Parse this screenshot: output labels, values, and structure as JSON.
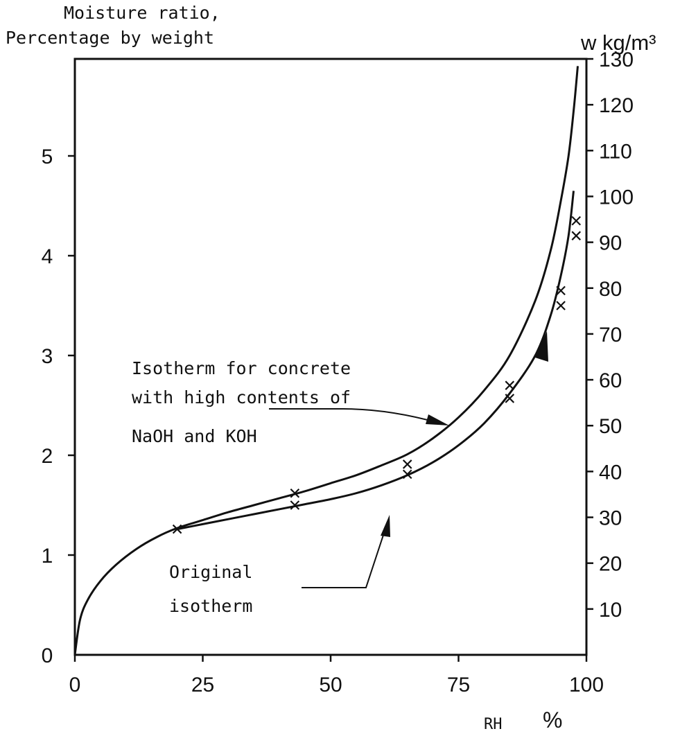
{
  "chart_data": {
    "type": "line",
    "left_axis_title_line1": "Moisture ratio,",
    "left_axis_title_line2": "Percentage by weight",
    "right_axis_title": "w kg/m³",
    "xlabel_prefix": "RH",
    "xlabel_unit": "%",
    "xlim": [
      0,
      100
    ],
    "ylim_left": [
      0,
      5.9
    ],
    "ylim_right": [
      0,
      130
    ],
    "x_ticks": [
      0,
      25,
      50,
      75,
      100
    ],
    "y_left_ticks": [
      0,
      1,
      2,
      3,
      4,
      5
    ],
    "y_right_ticks": [
      10,
      20,
      30,
      40,
      50,
      60,
      70,
      80,
      90,
      100,
      110,
      120,
      130
    ],
    "series": [
      {
        "name": "Isotherm for concrete with high contents of NaOH and KOH",
        "label_lines": [
          "Isotherm for concrete",
          "with high contents of",
          "NaOH and KOH"
        ],
        "x": [
          0,
          1,
          2.5,
          5,
          8,
          12,
          16,
          20,
          25,
          30,
          35,
          40,
          45,
          50,
          55,
          60,
          65,
          70,
          75,
          80,
          85,
          90,
          93,
          95,
          96.5,
          97.5,
          98.3
        ],
        "y": [
          0,
          0.35,
          0.55,
          0.74,
          0.9,
          1.06,
          1.18,
          1.27,
          1.35,
          1.43,
          1.5,
          1.57,
          1.64,
          1.72,
          1.8,
          1.9,
          2.01,
          2.17,
          2.38,
          2.65,
          3.0,
          3.55,
          4.05,
          4.55,
          5.0,
          5.45,
          5.9
        ]
      },
      {
        "name": "Original isotherm",
        "label_lines": [
          "Original",
          "isotherm"
        ],
        "x": [
          20,
          25,
          30,
          35,
          40,
          45,
          50,
          55,
          60,
          65,
          70,
          75,
          80,
          85,
          90,
          93,
          95,
          96.5,
          97.5
        ],
        "y": [
          1.26,
          1.31,
          1.36,
          1.41,
          1.46,
          1.51,
          1.56,
          1.62,
          1.7,
          1.8,
          1.93,
          2.1,
          2.32,
          2.62,
          3.0,
          3.4,
          3.8,
          4.2,
          4.65
        ]
      }
    ],
    "measured_points": [
      {
        "x": 20,
        "y": 1.26
      },
      {
        "x": 43,
        "y": 1.62
      },
      {
        "x": 43,
        "y": 1.5
      },
      {
        "x": 65,
        "y": 1.91
      },
      {
        "x": 65,
        "y": 1.81
      },
      {
        "x": 85,
        "y": 2.7
      },
      {
        "x": 85,
        "y": 2.57
      },
      {
        "x": 95,
        "y": 3.65
      },
      {
        "x": 95,
        "y": 3.5
      },
      {
        "x": 98,
        "y": 4.35
      },
      {
        "x": 98,
        "y": 4.2
      }
    ],
    "grid": false,
    "legend": "none"
  }
}
